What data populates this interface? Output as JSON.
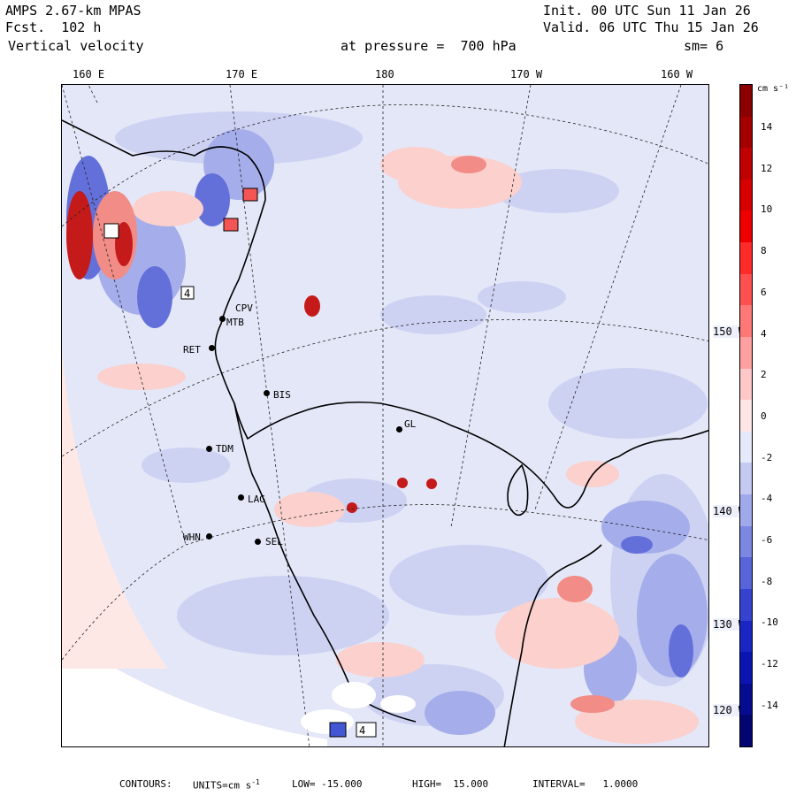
{
  "header": {
    "model": "AMPS 2.67-km MPAS",
    "forecast": "Fcst.  102 h",
    "field": "Vertical velocity",
    "pressure": "at pressure =  700 hPa",
    "init": "Init. 00 UTC Sun 11 Jan 26",
    "valid": "Valid. 06 UTC Thu 15 Jan 26",
    "smoothing": "sm= 6"
  },
  "map": {
    "lon_labels": [
      "160 E",
      "170 E",
      "180",
      "170 W",
      "160 W"
    ],
    "lat_labels": [
      "150 W",
      "140 W",
      "130 W",
      "120 W"
    ],
    "stations": [
      "CPV",
      "MTB",
      "BIS",
      "RET",
      "GL",
      "TDM",
      "LAG",
      "WHN",
      "SEL"
    ],
    "box_values": [
      "4",
      "4"
    ]
  },
  "colorbar": {
    "unit": "cm s⁻¹",
    "ticks": [
      "14",
      "12",
      "10",
      "8",
      "6",
      "4",
      "2",
      "0",
      "-2",
      "-4",
      "-6",
      "-8",
      "-10",
      "-12",
      "-14"
    ],
    "colors": [
      "#8b0000",
      "#a50000",
      "#be0000",
      "#d60000",
      "#ee0000",
      "#ff2b2b",
      "#ff5050",
      "#ff7878",
      "#ffa0a0",
      "#ffc8c8",
      "#ffe6e6",
      "#e6e9fa",
      "#c4caf2",
      "#a0a9ea",
      "#7c87e2",
      "#5865d9",
      "#3543d0",
      "#1a26c4",
      "#0a14b0",
      "#060c90",
      "#030670"
    ]
  },
  "footer": {
    "contours": "CONTOURS:",
    "units_label": "UNITS=cm s",
    "units_sup": "-1",
    "low": "LOW= -15.000",
    "high": "HIGH=  15.000",
    "interval": "INTERVAL=   1.0000"
  }
}
